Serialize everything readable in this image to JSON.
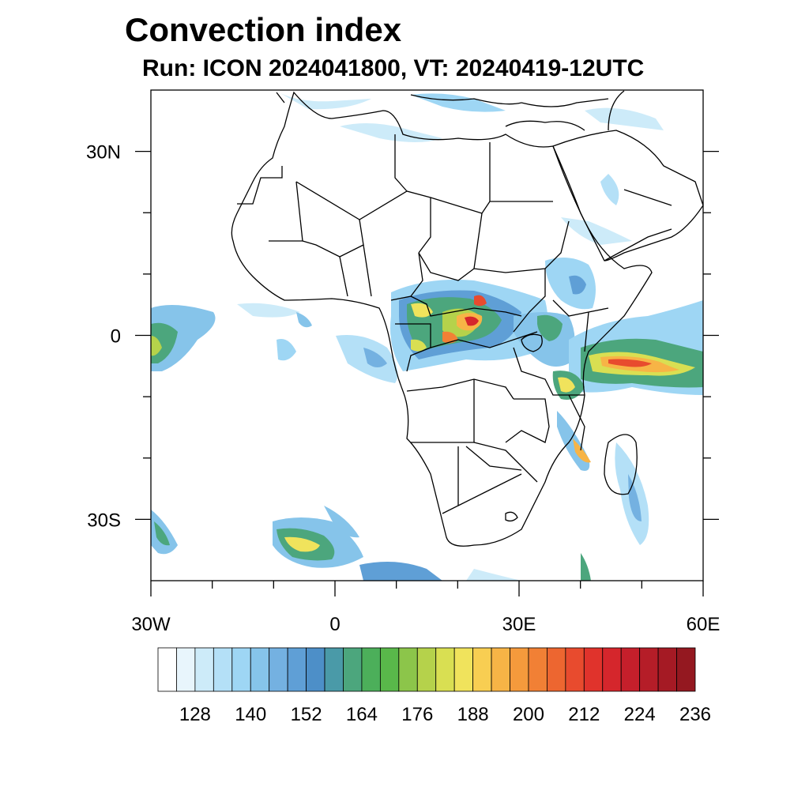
{
  "title": "Convection index",
  "subtitle": "Run: ICON 2024041800,  VT: 20240419-12UTC",
  "map": {
    "lon_range": [
      -30,
      60
    ],
    "lat_range": [
      -40,
      40
    ],
    "y_ticks": [
      {
        "lat": 30,
        "label": "30N"
      },
      {
        "lat": 0,
        "label": "0"
      },
      {
        "lat": -30,
        "label": "30S"
      }
    ],
    "x_ticks": [
      {
        "lon": -30,
        "label": "30W"
      },
      {
        "lon": 0,
        "label": "0"
      },
      {
        "lon": 30,
        "label": "30E"
      },
      {
        "lon": 60,
        "label": "60E"
      }
    ]
  },
  "colorbar": {
    "colors": [
      "#ffffff",
      "#e8f5fc",
      "#cdebf9",
      "#b4e0f7",
      "#9ed6f4",
      "#86c4ea",
      "#74b1e1",
      "#5f9fd6",
      "#4d8fc8",
      "#4a9aa8",
      "#4ca67d",
      "#4caf5a",
      "#59b84a",
      "#8cc54a",
      "#b5d24b",
      "#d9df52",
      "#f0e35c",
      "#f8ce52",
      "#f7b446",
      "#f59a3c",
      "#f18035",
      "#ed6630",
      "#e84b2e",
      "#e0332c",
      "#d5262c",
      "#c51f2b",
      "#b51d28",
      "#a51a24",
      "#941820"
    ],
    "labels": [
      "128",
      "140",
      "152",
      "164",
      "176",
      "188",
      "200",
      "212",
      "224",
      "236"
    ]
  }
}
